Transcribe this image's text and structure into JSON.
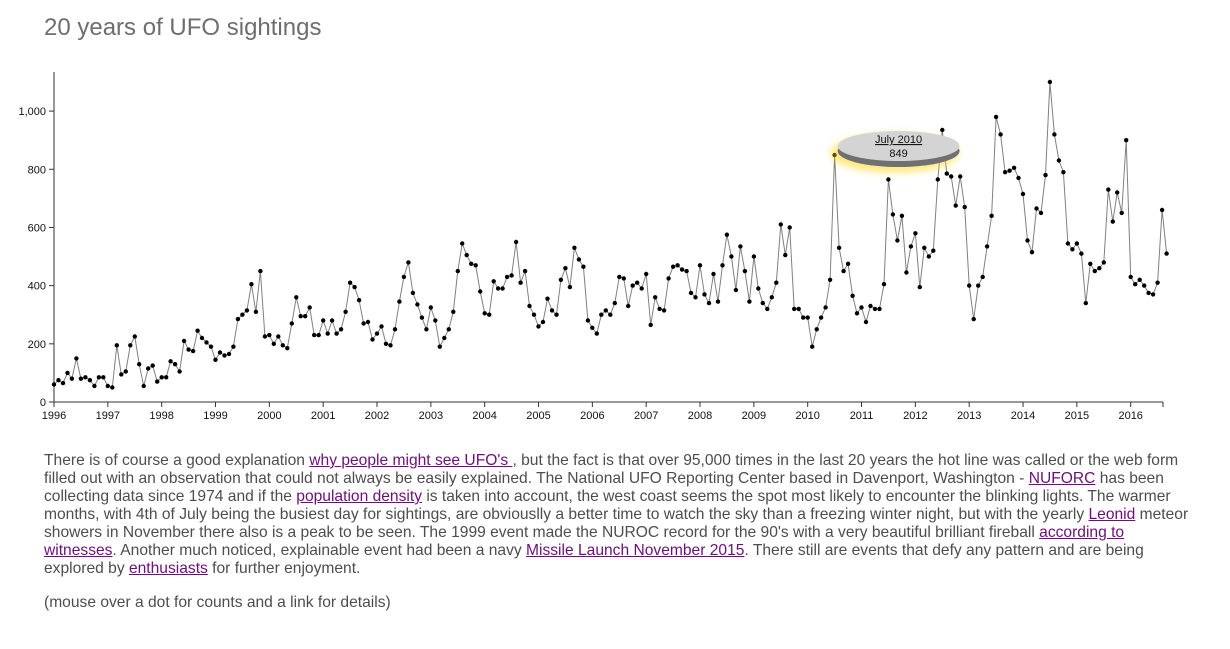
{
  "title": "20 years of UFO sightings",
  "chart_data": {
    "type": "line",
    "x_start": 1996,
    "x_step_months": 1,
    "x_ticks": [
      "1996",
      "1997",
      "1998",
      "1999",
      "2000",
      "2001",
      "2002",
      "2003",
      "2004",
      "2005",
      "2006",
      "2007",
      "2008",
      "2009",
      "2010",
      "2011",
      "2012",
      "2013",
      "2014",
      "2015",
      "2016"
    ],
    "y_ticks": [
      "0",
      "200",
      "400",
      "600",
      "800",
      "1,000"
    ],
    "ylim": [
      0,
      1100
    ],
    "xlim": [
      1996,
      2016.6
    ],
    "values": [
      60,
      75,
      65,
      100,
      80,
      150,
      80,
      85,
      75,
      55,
      85,
      85,
      55,
      50,
      195,
      95,
      105,
      195,
      225,
      130,
      55,
      115,
      125,
      70,
      85,
      85,
      140,
      130,
      105,
      210,
      180,
      175,
      245,
      220,
      205,
      190,
      145,
      170,
      160,
      165,
      190,
      285,
      300,
      315,
      405,
      310,
      450,
      225,
      230,
      200,
      225,
      195,
      185,
      270,
      360,
      295,
      295,
      325,
      230,
      230,
      280,
      235,
      280,
      235,
      250,
      310,
      410,
      395,
      350,
      270,
      275,
      215,
      235,
      260,
      200,
      195,
      250,
      345,
      430,
      480,
      375,
      335,
      290,
      250,
      325,
      280,
      190,
      220,
      250,
      310,
      450,
      545,
      505,
      475,
      470,
      380,
      305,
      300,
      415,
      390,
      390,
      430,
      435,
      550,
      410,
      450,
      330,
      300,
      260,
      275,
      355,
      315,
      300,
      420,
      460,
      395,
      530,
      490,
      465,
      280,
      255,
      235,
      300,
      315,
      300,
      340,
      430,
      425,
      330,
      400,
      410,
      390,
      440,
      265,
      360,
      320,
      315,
      425,
      465,
      470,
      455,
      450,
      375,
      360,
      470,
      370,
      340,
      440,
      345,
      470,
      575,
      500,
      385,
      535,
      450,
      345,
      500,
      390,
      340,
      320,
      360,
      410,
      610,
      505,
      600,
      320,
      320,
      290,
      290,
      190,
      250,
      290,
      325,
      420,
      849,
      530,
      450,
      475,
      365,
      305,
      325,
      275,
      330,
      320,
      320,
      405,
      765,
      645,
      555,
      640,
      445,
      535,
      580,
      395,
      530,
      500,
      520,
      765,
      935,
      785,
      775,
      675,
      775,
      670,
      400,
      285,
      400,
      430,
      535,
      640,
      980,
      920,
      790,
      795,
      805,
      770,
      715,
      555,
      515,
      665,
      650,
      780,
      1100,
      920,
      830,
      790,
      545,
      525,
      545,
      510,
      340,
      475,
      450,
      460,
      480,
      730,
      620,
      720,
      650,
      900,
      430,
      405,
      420,
      400,
      375,
      370,
      410,
      660,
      510
    ],
    "highlight": {
      "label": "July 2010",
      "value": "849",
      "index": 174
    },
    "colors": {
      "line": "#808080",
      "dot": "#000000",
      "tooltip": "#d4d4d4",
      "tooltip_shadow": "#707070",
      "glow": "#ffd400"
    }
  },
  "description": {
    "p1": "There is of course a good explanation ",
    "l1": "why people might see UFO's ",
    "p2": ", but the fact is that over 95,000 times in the last 20 years the hot line was called or the web form filled out with an observation that could not always be easily explained. The National UFO Reporting Center based in Davenport, Washington - ",
    "l2": "NUFORC",
    "p3": " has been collecting data since 1974 and if the ",
    "l3": "population density",
    "p4": " is taken into account, the west coast seems the spot most likely to encounter the blinking lights. The warmer months, with 4th of July being the busiest day for sightings, are obviouslly a better time to watch the sky than a freezing winter night, but with the yearly ",
    "l4": "Leonid",
    "p5": " meteor showers in November there also is a peak to be seen. The 1999 event made the NUROC record for the 90's with a very beautiful brilliant fireball ",
    "l5": "according to witnesses",
    "p6": ". Another much noticed, explainable event had been a navy ",
    "l6": "Missile Launch November 2015",
    "p7": ". There still are events that defy any pattern and are being explored by ",
    "l7": "enthusiasts",
    "p8": " for further enjoyment."
  },
  "hint": "(mouse over a dot for counts and a link for details)"
}
